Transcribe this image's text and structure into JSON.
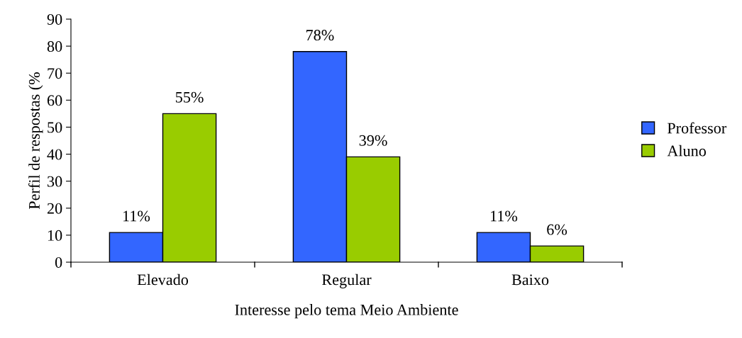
{
  "chart_data": {
    "type": "bar",
    "xlabel": "Interesse pelo tema Meio Ambiente",
    "ylabel": "Perfil de respostas (%",
    "categories": [
      "Elevado",
      "Regular",
      "Baixo"
    ],
    "series": [
      {
        "name": "Professor",
        "color": "#3366ff",
        "values": [
          11,
          78,
          11
        ],
        "value_labels": [
          "11%",
          "78%",
          "11%"
        ]
      },
      {
        "name": "Aluno",
        "color": "#99cc00",
        "values": [
          55,
          39,
          6
        ],
        "value_labels": [
          "55%",
          "39%",
          "6%"
        ]
      }
    ],
    "ylim": [
      0,
      90
    ],
    "yticks": [
      0,
      10,
      20,
      30,
      40,
      50,
      60,
      70,
      80,
      90
    ],
    "grid": false,
    "legend": "right"
  }
}
